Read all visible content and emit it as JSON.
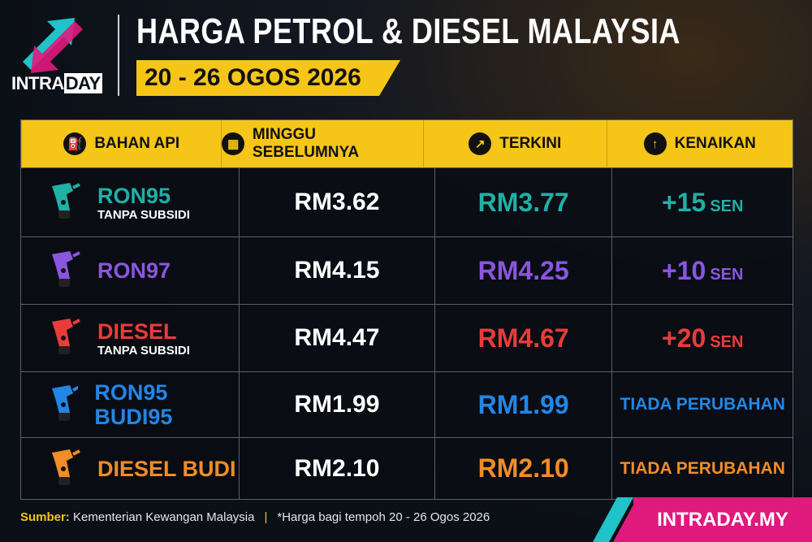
{
  "header": {
    "logo_left": "INTRA",
    "logo_right": "DAY",
    "title": "HARGA PETROL & DIESEL MALAYSIA",
    "date": "20 - 26 OGOS 2026"
  },
  "table": {
    "columns": [
      "BAHAN API",
      "MINGGU SEBELUMNYA",
      "TERKINI",
      "KENAIKAN"
    ],
    "rows": [
      {
        "name": "RON95",
        "subtitle": "TANPA SUBSIDI",
        "color": "#1fb0a6",
        "previous": "RM3.62",
        "current": "RM3.77",
        "change": "+15",
        "change_unit": "SEN"
      },
      {
        "name": "RON97",
        "color": "#8b55e0",
        "previous": "RM4.15",
        "current": "RM4.25",
        "change": "+10",
        "change_unit": "SEN"
      },
      {
        "name": "DIESEL",
        "subtitle": "TANPA SUBSIDI",
        "color": "#ec3b3b",
        "previous": "RM4.47",
        "current": "RM4.67",
        "change": "+20",
        "change_unit": "SEN"
      },
      {
        "name": "RON95 BUDI95",
        "color": "#2286e6",
        "previous": "RM1.99",
        "current": "RM1.99",
        "change": "TIADA PERUBAHAN"
      },
      {
        "name": "DIESEL BUDI",
        "color": "#f28c28",
        "previous": "RM2.10",
        "current": "RM2.10",
        "change": "TIADA PERUBAHAN"
      }
    ]
  },
  "footer": {
    "source_label": "Sumber:",
    "source": "Kementerian Kewangan Malaysia",
    "note": "*Harga bagi tempoh 20 - 26 Ogos 2026",
    "url": "INTRADAY.MY"
  }
}
